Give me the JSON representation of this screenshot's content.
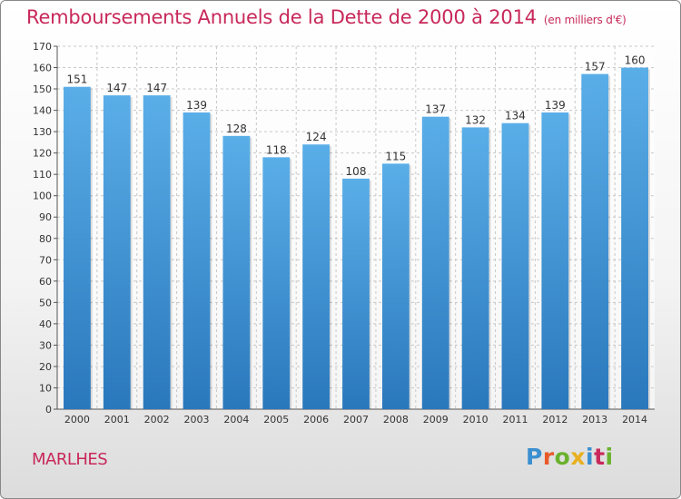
{
  "title": "Remboursements Annuels de la Dette de 2000 à 2014",
  "subtitle": "(en milliers d'€)",
  "commune": "MARLHES",
  "logo": {
    "letters": [
      "P",
      "r",
      "o",
      "x",
      "i",
      "t",
      "i"
    ],
    "colors": [
      "#3a8fd0",
      "#e85a2a",
      "#6ab22e",
      "#e8b020",
      "#3a8fd0",
      "#c8285a",
      "#6ab22e"
    ]
  },
  "colors": {
    "accent": "#c8285a",
    "bar_top": "#5aaee8",
    "bar_bottom": "#2a78bc",
    "axis_text": "#333333",
    "grid": "#c8c8c8"
  },
  "chart_data": {
    "type": "bar",
    "title": "Remboursements Annuels de la Dette de 2000 à 2014",
    "xlabel": "",
    "ylabel": "",
    "categories": [
      "2000",
      "2001",
      "2002",
      "2003",
      "2004",
      "2005",
      "2006",
      "2007",
      "2008",
      "2009",
      "2010",
      "2011",
      "2012",
      "2013",
      "2014"
    ],
    "values": [
      151,
      147,
      147,
      139,
      128,
      118,
      124,
      108,
      115,
      137,
      132,
      134,
      139,
      157,
      160
    ],
    "ylim": [
      0,
      170
    ],
    "yticks": [
      0,
      10,
      20,
      30,
      40,
      50,
      60,
      70,
      80,
      90,
      100,
      110,
      120,
      130,
      140,
      150,
      160,
      170
    ],
    "grid": true,
    "data_labels": true
  }
}
